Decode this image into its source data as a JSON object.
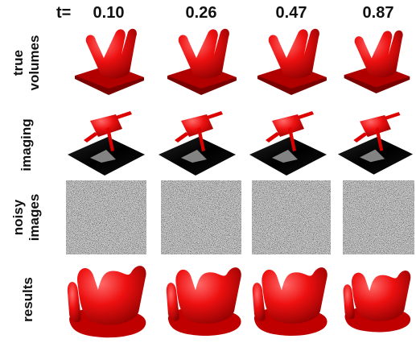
{
  "header": {
    "prefix": "t=",
    "times": [
      "0.10",
      "0.26",
      "0.47",
      "0.87"
    ]
  },
  "rows": [
    {
      "label": [
        "true",
        "volumes"
      ]
    },
    {
      "label": [
        "imaging"
      ]
    },
    {
      "label": [
        "noisy",
        "images"
      ]
    },
    {
      "label": [
        "results"
      ]
    }
  ]
}
